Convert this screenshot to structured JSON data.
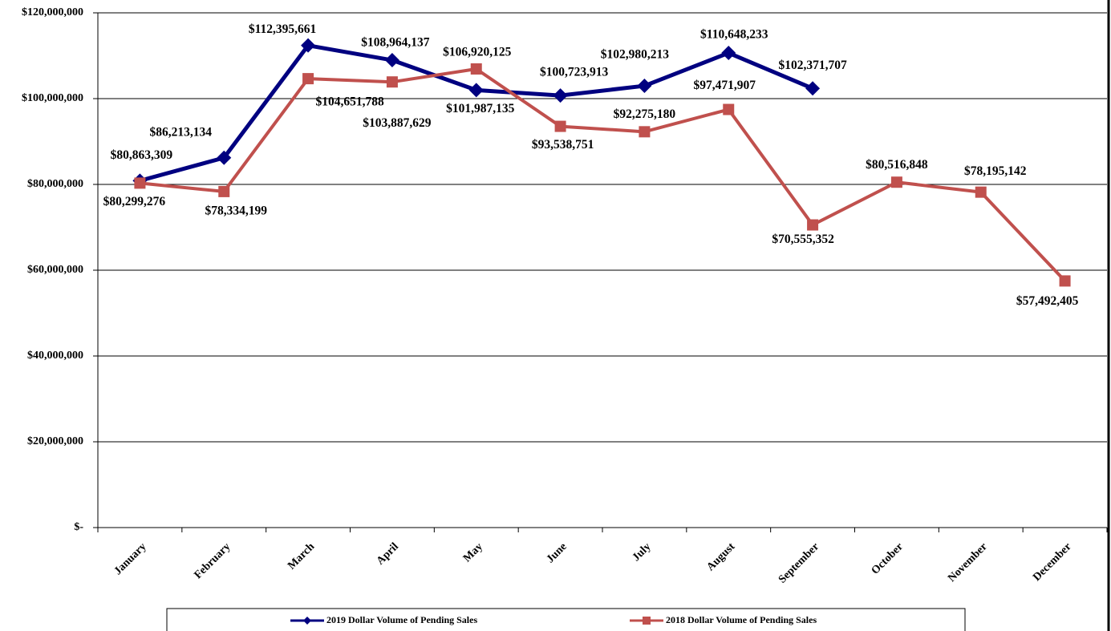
{
  "chart_data": {
    "type": "line",
    "categories": [
      "January",
      "February",
      "March",
      "April",
      "May",
      "June",
      "July",
      "August",
      "September",
      "October",
      "November",
      "December"
    ],
    "series": [
      {
        "name": "2019 Dollar Volume of Pending Sales",
        "color": "#000080",
        "marker": "diamond",
        "values": [
          80863309,
          86213134,
          112395661,
          108964137,
          101987135,
          100723913,
          102980213,
          110648233,
          102371707,
          null,
          null,
          null
        ],
        "value_labels": [
          "$80,863,309",
          "$86,213,134",
          "$112,395,661",
          "$108,964,137",
          "$101,987,135",
          "$100,723,913",
          "$102,980,213",
          "$110,648,233",
          "$102,371,707",
          null,
          null,
          null
        ]
      },
      {
        "name": "2018 Dollar Volume of Pending Sales",
        "color": "#c0504d",
        "marker": "square",
        "values": [
          80299276,
          78334199,
          104651788,
          103887629,
          106920125,
          93538751,
          92275180,
          97471907,
          70555352,
          80516848,
          78195142,
          57492405
        ],
        "value_labels": [
          "$80,299,276",
          "$78,334,199",
          "$104,651,788",
          "$103,887,629",
          "$106,920,125",
          "$93,538,751",
          "$92,275,180",
          "$97,471,907",
          "$70,555,352",
          "$80,516,848",
          "$78,195,142",
          "$57,492,405"
        ]
      }
    ],
    "ylim": [
      0,
      120000000
    ],
    "yticks": [
      {
        "value": 0,
        "label": "$-"
      },
      {
        "value": 20000000,
        "label": "$20,000,000"
      },
      {
        "value": 40000000,
        "label": "$40,000,000"
      },
      {
        "value": 60000000,
        "label": "$60,000,000"
      },
      {
        "value": 80000000,
        "label": "$80,000,000"
      },
      {
        "value": 100000000,
        "label": "$100,000,000"
      },
      {
        "value": 120000000,
        "label": "$120,000,000"
      }
    ],
    "grid": true,
    "legend": "bottom"
  }
}
